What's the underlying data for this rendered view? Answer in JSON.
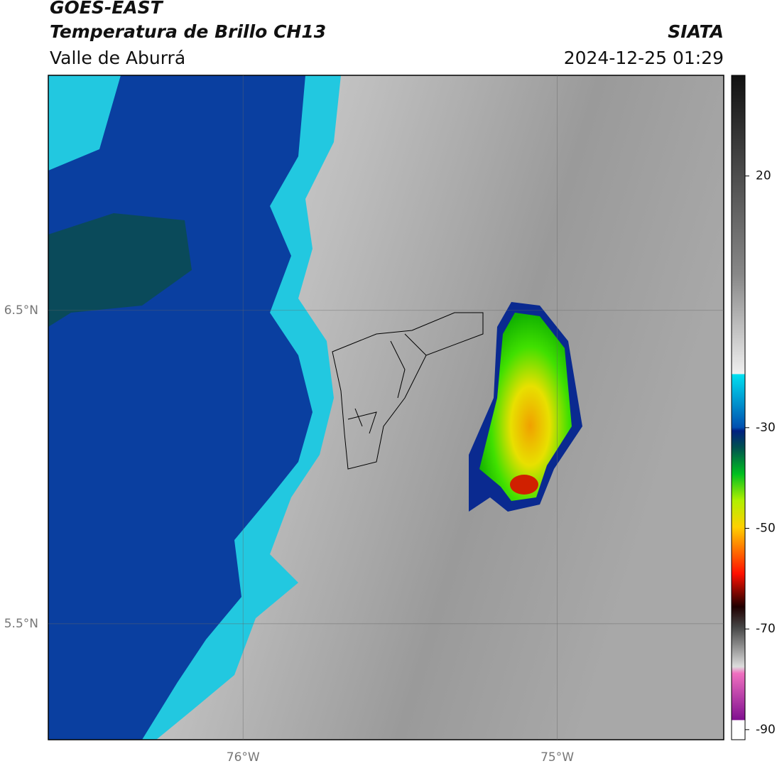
{
  "header": {
    "title": "GOES-EAST",
    "subtitle": "Temperatura de Brillo CH13",
    "region": "Valle de Aburrá",
    "source": "SIATA",
    "datetime": "2024-12-25 01:29"
  },
  "map": {
    "lonlim": [
      -76.62,
      -74.47
    ],
    "latlim": [
      5.13,
      7.25
    ],
    "lonticks": [
      {
        "value": -76,
        "label": "76°W"
      },
      {
        "value": -75,
        "label": "75°W"
      }
    ],
    "latticks": [
      {
        "value": 6.5,
        "label": "6.5°N"
      },
      {
        "value": 5.5,
        "label": "5.5°N"
      }
    ]
  },
  "colorbar": {
    "lim": [
      -92,
      40
    ],
    "ticks": [
      20,
      -30,
      -50,
      -70,
      -90
    ]
  }
}
